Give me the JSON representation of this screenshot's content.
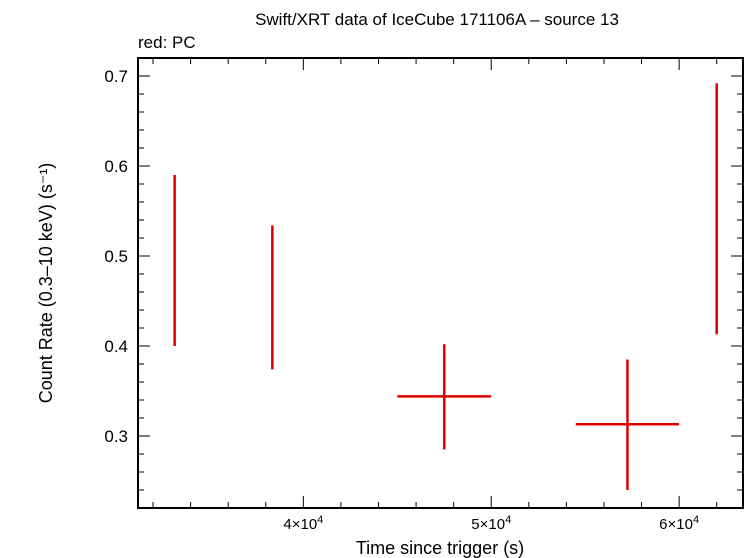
{
  "chart_data": {
    "type": "scatter",
    "title": "Swift/XRT data of IceCube 171106A – source 13",
    "subtitle": "red: PC",
    "xlabel": "Time since trigger (s)",
    "ylabel": "Count Rate (0.3–10 keV) (s⁻¹)",
    "xlim": [
      31200,
      63400
    ],
    "ylim": [
      0.22,
      0.72
    ],
    "x_ticks": [
      {
        "value": 40000,
        "mantissa": "4×10",
        "exp": "4"
      },
      {
        "value": 50000,
        "mantissa": "5×10",
        "exp": "4"
      },
      {
        "value": 60000,
        "mantissa": "6×10",
        "exp": "4"
      }
    ],
    "y_ticks": [
      {
        "value": 0.3,
        "label": "0.3"
      },
      {
        "value": 0.4,
        "label": "0.4"
      },
      {
        "value": 0.5,
        "label": "0.5"
      },
      {
        "value": 0.6,
        "label": "0.6"
      },
      {
        "value": 0.7,
        "label": "0.7"
      }
    ],
    "color": "#e00000",
    "series": [
      {
        "points": [
          {
            "x": 33150,
            "xerr": 40,
            "y": 0.495,
            "ylo": 0.4,
            "yhi": 0.59
          },
          {
            "x": 38350,
            "xerr": 40,
            "y": 0.453,
            "ylo": 0.374,
            "yhi": 0.534
          },
          {
            "x": 47500,
            "xerr": 2500,
            "y": 0.344,
            "ylo": 0.285,
            "yhi": 0.402
          },
          {
            "x": 57250,
            "xerr": 2750,
            "y": 0.313,
            "ylo": 0.24,
            "yhi": 0.385
          },
          {
            "x": 62000,
            "xerr": 40,
            "y": 0.553,
            "ylo": 0.413,
            "yhi": 0.692
          }
        ]
      }
    ]
  }
}
